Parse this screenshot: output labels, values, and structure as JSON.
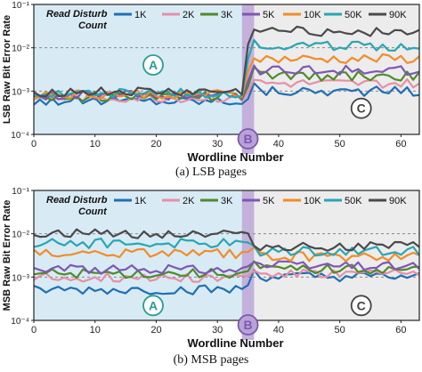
{
  "colors": {
    "1K": "#1f6fb5",
    "2K": "#e58fa6",
    "3K": "#4f8a2b",
    "5K": "#7e57b2",
    "10K": "#f28c28",
    "50K": "#2aa5b3",
    "90K": "#4a4a4a",
    "region_a_fill": "#d8ebf5",
    "region_b_fill": "#b9a3d6",
    "region_c_fill": "#ececec",
    "label_a": "#2a9d8f",
    "label_b": "#7e57b2",
    "label_c": "#444444"
  },
  "chart_data": [
    {
      "type": "line",
      "caption": "(a) LSB pages",
      "xlabel": "Wordline Number",
      "ylabel": "LSB Raw Bit Error Rate",
      "xlim": [
        0,
        63
      ],
      "xticks": [
        "0",
        "10",
        "20",
        "30",
        "40",
        "50",
        "60"
      ],
      "yscale": "log",
      "ylim": [
        0.0001,
        0.1
      ],
      "yticks": [
        "10⁻⁴",
        "10⁻³",
        "10⁻²",
        "10⁻¹"
      ],
      "dashed_reference_lines": [
        0.01,
        0.001
      ],
      "legend_title": "Read Disturb Count",
      "legend_placement": "top",
      "regions": [
        {
          "label": "A",
          "x_range": [
            0,
            34
          ]
        },
        {
          "label": "B",
          "x_range": [
            34,
            36
          ]
        },
        {
          "label": "C",
          "x_range": [
            36,
            63
          ]
        }
      ],
      "series": [
        {
          "name": "1K",
          "before": 0.0006,
          "after": 0.001
        },
        {
          "name": "2K",
          "before": 0.0007,
          "after": 0.0015
        },
        {
          "name": "3K",
          "before": 0.00075,
          "after": 0.0022
        },
        {
          "name": "5K",
          "before": 0.0008,
          "after": 0.003
        },
        {
          "name": "10K",
          "before": 0.00085,
          "after": 0.0055
        },
        {
          "name": "50K",
          "before": 0.0009,
          "after": 0.011
        },
        {
          "name": "90K",
          "before": 0.00095,
          "after": 0.024
        }
      ]
    },
    {
      "type": "line",
      "caption": "(b) MSB pages",
      "xlabel": "Wordline Number",
      "ylabel": "MSB Raw Bit Error Rate",
      "xlim": [
        0,
        63
      ],
      "xticks": [
        "0",
        "10",
        "20",
        "30",
        "40",
        "50",
        "60"
      ],
      "yscale": "log",
      "ylim": [
        0.0001,
        0.1
      ],
      "yticks": [
        "10⁻⁴",
        "10⁻³",
        "10⁻²",
        "10⁻¹"
      ],
      "dashed_reference_lines": [
        0.01,
        0.001
      ],
      "legend_title": "Read Disturb Count",
      "legend_placement": "top",
      "regions": [
        {
          "label": "A",
          "x_range": [
            0,
            34
          ]
        },
        {
          "label": "B",
          "x_range": [
            34,
            36
          ]
        },
        {
          "label": "C",
          "x_range": [
            36,
            63
          ]
        }
      ],
      "series": [
        {
          "name": "1K",
          "before": 0.0005,
          "after": 0.001
        },
        {
          "name": "2K",
          "before": 0.001,
          "after": 0.0012
        },
        {
          "name": "3K",
          "before": 0.0012,
          "after": 0.0015
        },
        {
          "name": "5K",
          "before": 0.0015,
          "after": 0.0018
        },
        {
          "name": "10K",
          "before": 0.0035,
          "after": 0.003
        },
        {
          "name": "50K",
          "before": 0.006,
          "after": 0.004
        },
        {
          "name": "90K",
          "before": 0.01,
          "after": 0.005
        }
      ]
    }
  ]
}
